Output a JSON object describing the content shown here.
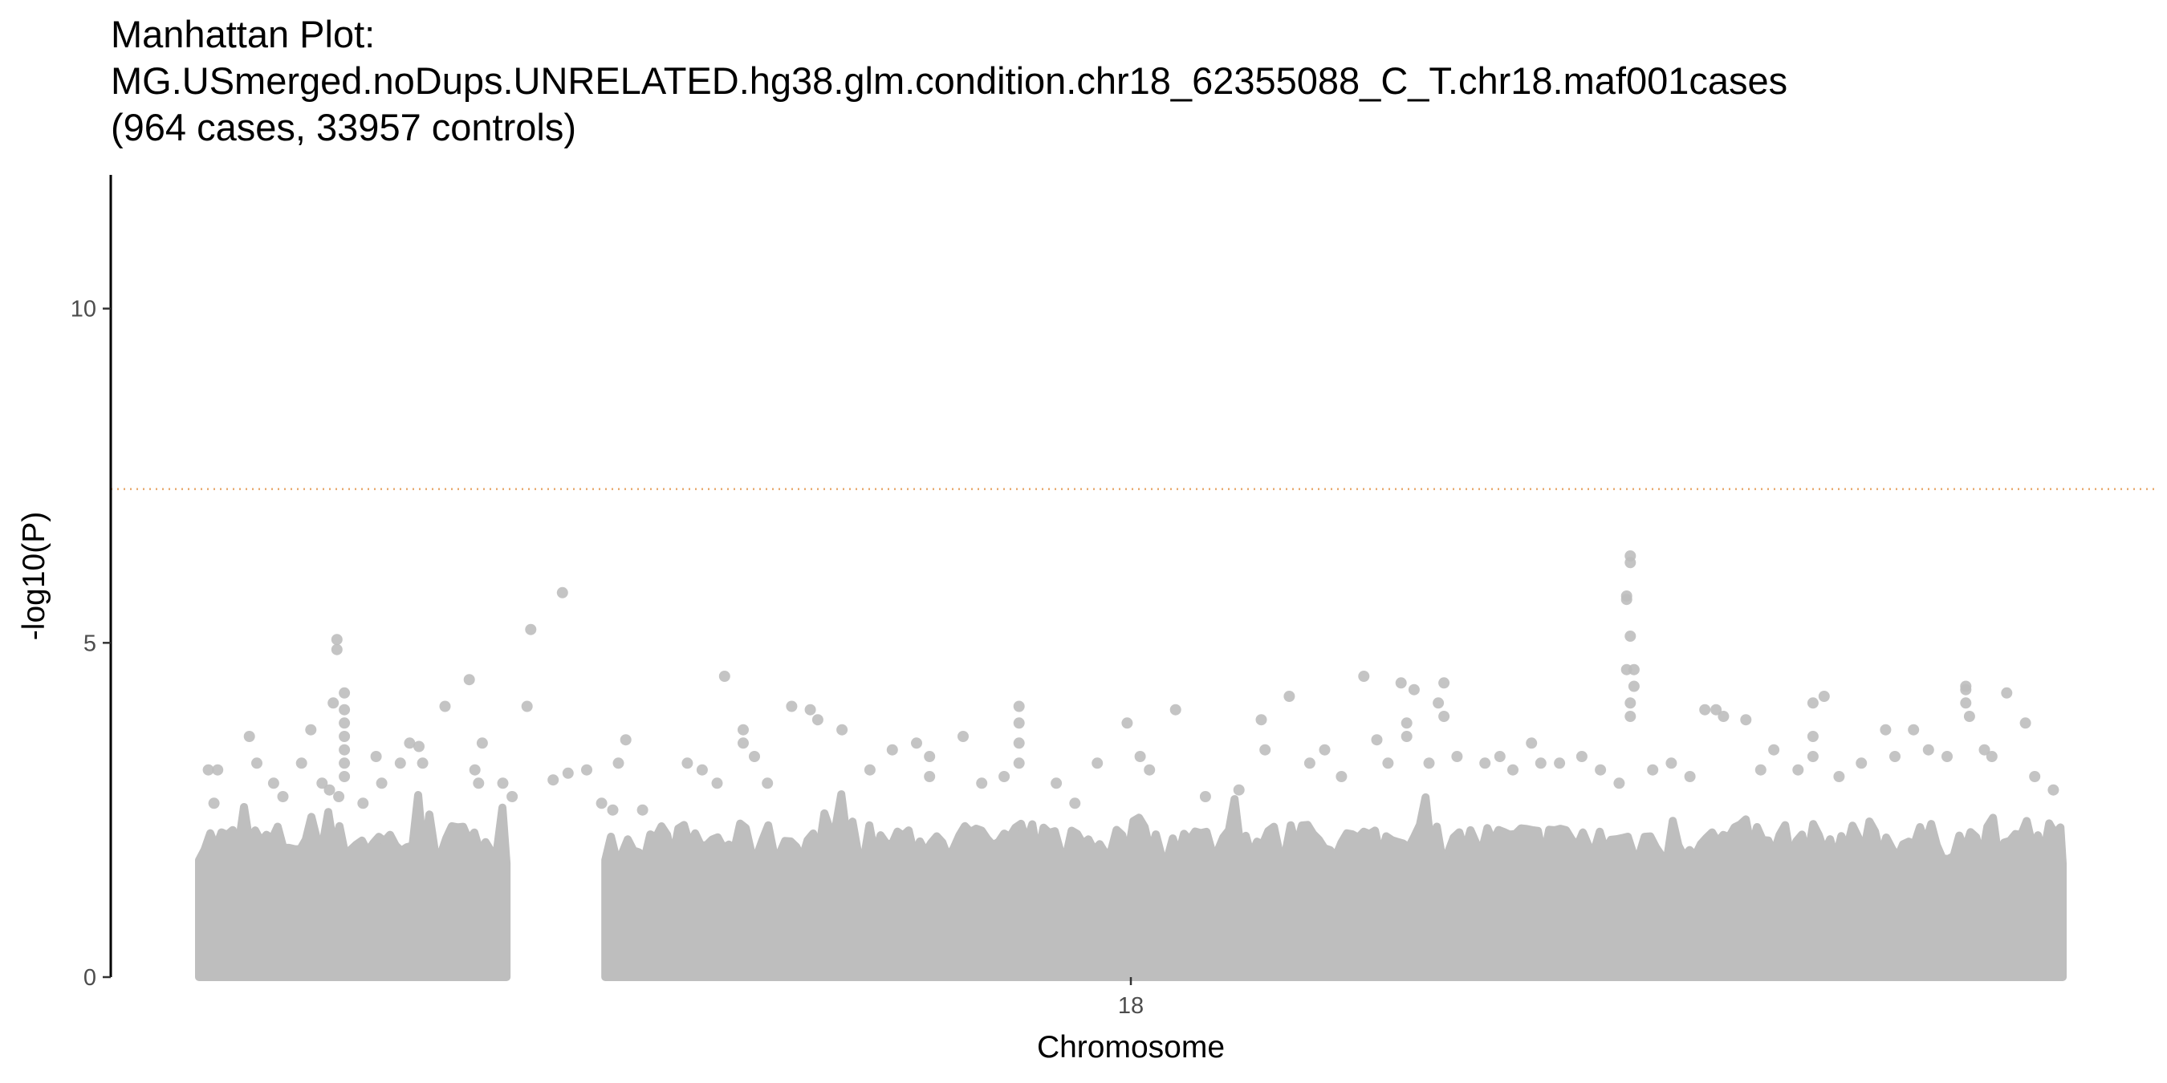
{
  "chart_data": {
    "type": "scatter",
    "title_lines": [
      "Manhattan Plot:",
      "MG.USmerged.noDups.UNRELATED.hg38.glm.condition.chr18_62355088_C_T.chr18.maf001cases",
      "(964 cases, 33957 controls)"
    ],
    "xlabel": "Chromosome",
    "ylabel": "-log10(P)",
    "x_ticks": [
      {
        "label": "18",
        "value": 0.5
      }
    ],
    "x_range": [
      0,
      1
    ],
    "ylim": [
      0,
      12
    ],
    "y_ticks": [
      0,
      5,
      10
    ],
    "grid": false,
    "legend": "none",
    "threshold": {
      "value": 7.3,
      "style": "dotted",
      "color": "#e8a86b"
    },
    "point_color": "#bebebe",
    "segments": [
      {
        "x_start": 0.0,
        "x_end": 0.165
      },
      {
        "x_start": 0.218,
        "x_end": 1.0
      }
    ],
    "peaks": [
      {
        "x": 0.005,
        "y": 3.1
      },
      {
        "x": 0.01,
        "y": 3.1
      },
      {
        "x": 0.008,
        "y": 2.6
      },
      {
        "x": 0.027,
        "y": 3.6
      },
      {
        "x": 0.031,
        "y": 3.2
      },
      {
        "x": 0.04,
        "y": 2.9
      },
      {
        "x": 0.045,
        "y": 2.7
      },
      {
        "x": 0.055,
        "y": 3.2
      },
      {
        "x": 0.06,
        "y": 3.7
      },
      {
        "x": 0.066,
        "y": 2.9
      },
      {
        "x": 0.07,
        "y": 2.8
      },
      {
        "x": 0.075,
        "y": 2.7
      },
      {
        "x": 0.074,
        "y": 5.05
      },
      {
        "x": 0.074,
        "y": 4.9
      },
      {
        "x": 0.072,
        "y": 4.1
      },
      {
        "x": 0.078,
        "y": 4.25
      },
      {
        "x": 0.078,
        "y": 4.0
      },
      {
        "x": 0.078,
        "y": 3.8
      },
      {
        "x": 0.078,
        "y": 3.6
      },
      {
        "x": 0.078,
        "y": 3.4
      },
      {
        "x": 0.078,
        "y": 3.2
      },
      {
        "x": 0.078,
        "y": 3.0
      },
      {
        "x": 0.088,
        "y": 2.6
      },
      {
        "x": 0.095,
        "y": 3.3
      },
      {
        "x": 0.098,
        "y": 2.9
      },
      {
        "x": 0.108,
        "y": 3.2
      },
      {
        "x": 0.113,
        "y": 3.5
      },
      {
        "x": 0.118,
        "y": 3.45
      },
      {
        "x": 0.12,
        "y": 3.2
      },
      {
        "x": 0.132,
        "y": 4.05
      },
      {
        "x": 0.145,
        "y": 4.45
      },
      {
        "x": 0.148,
        "y": 3.1
      },
      {
        "x": 0.15,
        "y": 2.9
      },
      {
        "x": 0.152,
        "y": 3.5
      },
      {
        "x": 0.163,
        "y": 2.9
      },
      {
        "x": 0.168,
        "y": 2.7
      },
      {
        "x": 0.178,
        "y": 5.2
      },
      {
        "x": 0.176,
        "y": 4.05
      },
      {
        "x": 0.19,
        "y": 2.95
      },
      {
        "x": 0.198,
        "y": 3.05
      },
      {
        "x": 0.208,
        "y": 3.1
      },
      {
        "x": 0.195,
        "y": 5.75
      },
      {
        "x": 0.216,
        "y": 2.6
      },
      {
        "x": 0.222,
        "y": 2.5
      },
      {
        "x": 0.225,
        "y": 3.2
      },
      {
        "x": 0.229,
        "y": 3.55
      },
      {
        "x": 0.238,
        "y": 2.5
      },
      {
        "x": 0.262,
        "y": 3.2
      },
      {
        "x": 0.27,
        "y": 3.1
      },
      {
        "x": 0.278,
        "y": 2.9
      },
      {
        "x": 0.282,
        "y": 4.5
      },
      {
        "x": 0.292,
        "y": 3.7
      },
      {
        "x": 0.292,
        "y": 3.5
      },
      {
        "x": 0.298,
        "y": 3.3
      },
      {
        "x": 0.305,
        "y": 2.9
      },
      {
        "x": 0.318,
        "y": 4.05
      },
      {
        "x": 0.328,
        "y": 4.0
      },
      {
        "x": 0.332,
        "y": 3.85
      },
      {
        "x": 0.345,
        "y": 3.7
      },
      {
        "x": 0.36,
        "y": 3.1
      },
      {
        "x": 0.372,
        "y": 3.4
      },
      {
        "x": 0.385,
        "y": 3.5
      },
      {
        "x": 0.392,
        "y": 3.3
      },
      {
        "x": 0.392,
        "y": 3.0
      },
      {
        "x": 0.41,
        "y": 3.6
      },
      {
        "x": 0.42,
        "y": 2.9
      },
      {
        "x": 0.432,
        "y": 3.0
      },
      {
        "x": 0.44,
        "y": 4.05
      },
      {
        "x": 0.44,
        "y": 3.8
      },
      {
        "x": 0.44,
        "y": 3.5
      },
      {
        "x": 0.44,
        "y": 3.2
      },
      {
        "x": 0.46,
        "y": 2.9
      },
      {
        "x": 0.47,
        "y": 2.6
      },
      {
        "x": 0.482,
        "y": 3.2
      },
      {
        "x": 0.498,
        "y": 3.8
      },
      {
        "x": 0.505,
        "y": 3.3
      },
      {
        "x": 0.51,
        "y": 3.1
      },
      {
        "x": 0.524,
        "y": 4.0
      },
      {
        "x": 0.54,
        "y": 2.7
      },
      {
        "x": 0.558,
        "y": 2.8
      },
      {
        "x": 0.57,
        "y": 3.85
      },
      {
        "x": 0.572,
        "y": 3.4
      },
      {
        "x": 0.585,
        "y": 4.2
      },
      {
        "x": 0.596,
        "y": 3.2
      },
      {
        "x": 0.604,
        "y": 3.4
      },
      {
        "x": 0.613,
        "y": 3.0
      },
      {
        "x": 0.625,
        "y": 4.5
      },
      {
        "x": 0.632,
        "y": 3.55
      },
      {
        "x": 0.638,
        "y": 3.2
      },
      {
        "x": 0.645,
        "y": 4.4
      },
      {
        "x": 0.652,
        "y": 4.3
      },
      {
        "x": 0.648,
        "y": 3.8
      },
      {
        "x": 0.648,
        "y": 3.6
      },
      {
        "x": 0.66,
        "y": 3.2
      },
      {
        "x": 0.665,
        "y": 4.1
      },
      {
        "x": 0.668,
        "y": 3.9
      },
      {
        "x": 0.668,
        "y": 4.4
      },
      {
        "x": 0.675,
        "y": 3.3
      },
      {
        "x": 0.69,
        "y": 3.2
      },
      {
        "x": 0.698,
        "y": 3.3
      },
      {
        "x": 0.705,
        "y": 3.1
      },
      {
        "x": 0.715,
        "y": 3.5
      },
      {
        "x": 0.72,
        "y": 3.2
      },
      {
        "x": 0.73,
        "y": 3.2
      },
      {
        "x": 0.742,
        "y": 3.3
      },
      {
        "x": 0.752,
        "y": 3.1
      },
      {
        "x": 0.762,
        "y": 2.9
      },
      {
        "x": 0.766,
        "y": 5.7
      },
      {
        "x": 0.766,
        "y": 5.65
      },
      {
        "x": 0.768,
        "y": 6.3
      },
      {
        "x": 0.768,
        "y": 6.2
      },
      {
        "x": 0.768,
        "y": 5.1
      },
      {
        "x": 0.766,
        "y": 4.6
      },
      {
        "x": 0.77,
        "y": 4.6
      },
      {
        "x": 0.77,
        "y": 4.35
      },
      {
        "x": 0.768,
        "y": 4.1
      },
      {
        "x": 0.768,
        "y": 3.9
      },
      {
        "x": 0.78,
        "y": 3.1
      },
      {
        "x": 0.79,
        "y": 3.2
      },
      {
        "x": 0.8,
        "y": 3.0
      },
      {
        "x": 0.808,
        "y": 4.0
      },
      {
        "x": 0.814,
        "y": 4.0
      },
      {
        "x": 0.818,
        "y": 3.9
      },
      {
        "x": 0.83,
        "y": 3.85
      },
      {
        "x": 0.838,
        "y": 3.1
      },
      {
        "x": 0.845,
        "y": 3.4
      },
      {
        "x": 0.858,
        "y": 3.1
      },
      {
        "x": 0.866,
        "y": 4.1
      },
      {
        "x": 0.872,
        "y": 4.2
      },
      {
        "x": 0.866,
        "y": 3.6
      },
      {
        "x": 0.866,
        "y": 3.3
      },
      {
        "x": 0.88,
        "y": 3.0
      },
      {
        "x": 0.892,
        "y": 3.2
      },
      {
        "x": 0.905,
        "y": 3.7
      },
      {
        "x": 0.91,
        "y": 3.3
      },
      {
        "x": 0.92,
        "y": 3.7
      },
      {
        "x": 0.928,
        "y": 3.4
      },
      {
        "x": 0.938,
        "y": 3.3
      },
      {
        "x": 0.948,
        "y": 4.35
      },
      {
        "x": 0.948,
        "y": 4.3
      },
      {
        "x": 0.948,
        "y": 4.1
      },
      {
        "x": 0.95,
        "y": 3.9
      },
      {
        "x": 0.958,
        "y": 3.4
      },
      {
        "x": 0.962,
        "y": 3.3
      },
      {
        "x": 0.97,
        "y": 4.25
      },
      {
        "x": 0.98,
        "y": 3.8
      },
      {
        "x": 0.985,
        "y": 3.0
      },
      {
        "x": 0.995,
        "y": 2.8
      }
    ]
  }
}
